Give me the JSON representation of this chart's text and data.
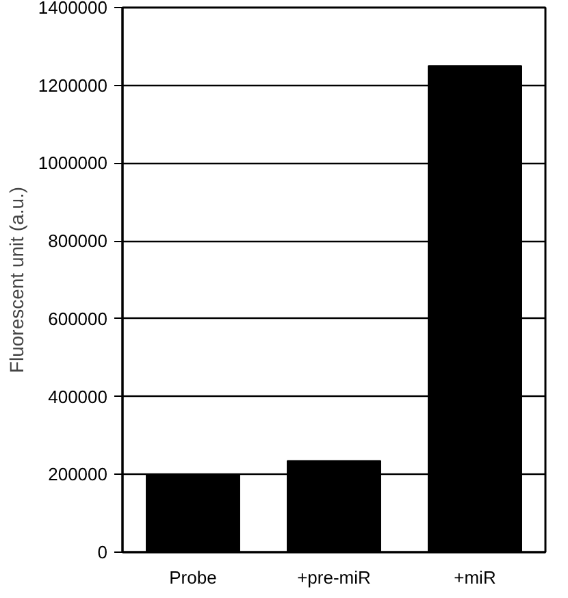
{
  "chart_data": {
    "type": "bar",
    "ylabel": "Fluorescent unit (a.u.)",
    "categories": [
      "Probe",
      "+pre-miR",
      "+miR"
    ],
    "values": [
      200000,
      235000,
      1250000
    ],
    "color": "#000000",
    "ylim": [
      0,
      1400000
    ],
    "yticks": [
      0,
      200000,
      400000,
      600000,
      800000,
      1000000,
      1200000,
      1400000
    ],
    "grid": "y"
  }
}
